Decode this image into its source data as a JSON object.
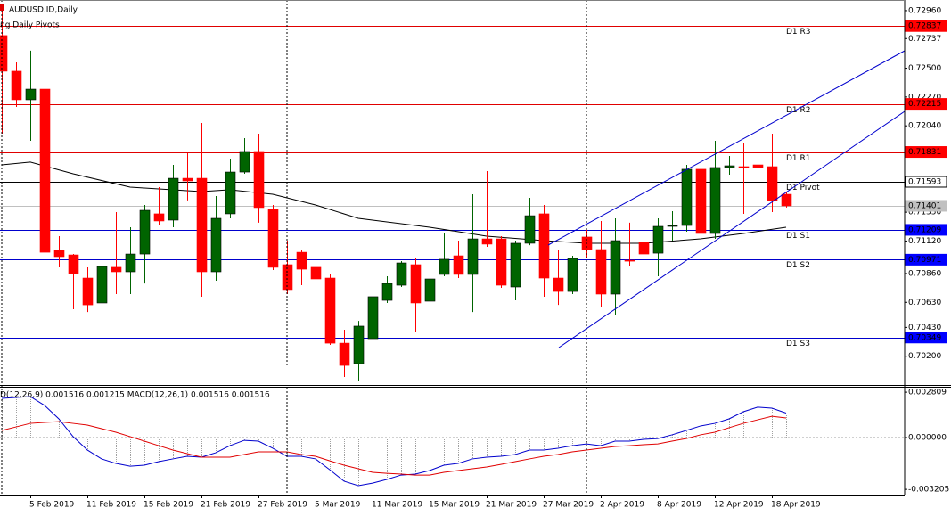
{
  "chart_data": {
    "type": "candlestick",
    "title": "AUDUSD.ID,Daily",
    "subtitle": "ng Daily Pivots",
    "categories": [
      null,
      null,
      "5 Feb 2019",
      null,
      null,
      null,
      "11 Feb 2019",
      null,
      null,
      null,
      "15 Feb 2019",
      null,
      null,
      null,
      "21 Feb 2019",
      null,
      null,
      null,
      "27 Feb 2019",
      null,
      null,
      null,
      "5 Mar 2019",
      null,
      null,
      null,
      "11 Mar 2019",
      null,
      null,
      null,
      "15 Mar 2019",
      null,
      null,
      null,
      "21 Mar 2019",
      null,
      null,
      null,
      "27 Mar 2019",
      null,
      null,
      null,
      "2 Apr 2019",
      null,
      null,
      null,
      "8 Apr 2019",
      null,
      null,
      null,
      "12 Apr 2019",
      null,
      null,
      null,
      "18 Apr 2019",
      null
    ],
    "open": [
      0.72761,
      0.72476,
      0.72248,
      0.72333,
      0.71045,
      0.71009,
      0.70824,
      0.70625,
      0.7091,
      0.70874,
      0.71016,
      0.71337,
      0.71287,
      0.71621,
      0.71621,
      0.70874,
      0.71337,
      0.71671,
      0.71835,
      0.71372,
      0.70931,
      0.7103,
      0.7091,
      0.70824,
      0.70304,
      0.7014,
      0.7034,
      0.70646,
      0.70767,
      0.70931,
      0.70639,
      0.70853,
      0.71002,
      0.70853,
      0.71137,
      0.71137,
      0.70753,
      0.71102,
      0.71337,
      0.70824,
      0.70717,
      0.71152,
      0.71052,
      0.70696,
      0.70966,
      0.71109,
      0.71023,
      0.71237,
      0.71244,
      0.71693,
      0.7118,
      0.71707,
      0.71714,
      0.71728,
      0.71714,
      0.71493
    ],
    "high": [
      0.72974,
      0.72547,
      0.7264,
      0.7244,
      0.71159,
      0.71016,
      0.7091,
      0.70981,
      0.71351,
      0.7123,
      0.71408,
      0.7155,
      0.71728,
      0.71821,
      0.72063,
      0.71479,
      0.71778,
      0.71942,
      0.71977,
      0.71408,
      0.71123,
      0.71052,
      0.70981,
      0.70853,
      0.70411,
      0.70482,
      0.70767,
      0.70838,
      0.70959,
      0.70981,
      0.7091,
      0.7118,
      0.71123,
      0.71493,
      0.71678,
      0.71159,
      0.71123,
      0.71465,
      0.71408,
      0.71052,
      0.71002,
      0.71209,
      0.7128,
      0.71301,
      0.71266,
      0.71301,
      0.71301,
      0.71358,
      0.71728,
      0.71728,
      0.7192,
      0.71799,
      0.71906,
      0.72049,
      0.71977,
      0.71515
    ],
    "low": [
      0.71977,
      0.72191,
      0.7192,
      0.71016,
      0.7091,
      0.70575,
      0.70553,
      0.70518,
      0.70696,
      0.70696,
      0.70781,
      0.71244,
      0.7123,
      0.71444,
      0.70675,
      0.70803,
      0.71301,
      0.71657,
      0.71266,
      0.70888,
      0.70696,
      0.70767,
      0.70625,
      0.7029,
      0.70034,
      0.70005,
      0.7034,
      0.70625,
      0.70753,
      0.70397,
      0.70603,
      0.70838,
      0.70824,
      0.70553,
      0.71073,
      0.70746,
      0.70646,
      0.71087,
      0.70675,
      0.7061,
      0.70696,
      0.70981,
      0.70589,
      0.70525,
      0.70924,
      0.70981,
      0.70838,
      0.71123,
      0.71194,
      0.71137,
      0.71137,
      0.7165,
      0.71337,
      0.71479,
      0.71351,
      0.71387
    ],
    "close": [
      0.72476,
      0.72248,
      0.72333,
      0.7103,
      0.70995,
      0.7086,
      0.7061,
      0.70917,
      0.70874,
      0.71016,
      0.71365,
      0.7128,
      0.71621,
      0.716,
      0.70874,
      0.71301,
      0.71671,
      0.71835,
      0.71387,
      0.7091,
      0.70732,
      0.70895,
      0.70817,
      0.70304,
      0.70126,
      0.7044,
      0.70675,
      0.70781,
      0.70945,
      0.70625,
      0.70817,
      0.70974,
      0.70853,
      0.71137,
      0.71095,
      0.70767,
      0.71102,
      0.71322,
      0.70824,
      0.70717,
      0.70981,
      0.71052,
      0.70696,
      0.71123,
      0.70959,
      0.71016,
      0.71237,
      0.71244,
      0.71693,
      0.7118,
      0.71707,
      0.71721,
      0.71714,
      0.71707,
      0.71444,
      0.71401
    ],
    "up_color": "#006400",
    "down_color": "#ff0000",
    "ylim": [
      0.6997,
      0.73045
    ],
    "yticks": [
      {
        "value": 0.7296,
        "label": "0.72960"
      },
      0.72737,
      {
        "value": 0.725,
        "label": "0.72500"
      },
      {
        "value": 0.7227,
        "label": "0.72270"
      },
      {
        "value": 0.7204,
        "label": "0.72040"
      },
      {
        "value": 0.7135,
        "label": "0.71350"
      },
      {
        "value": 0.7112,
        "label": "0.71120"
      },
      {
        "value": 0.7086,
        "label": "0.70860"
      },
      {
        "value": 0.7063,
        "label": "0.70630"
      },
      {
        "value": 0.7043,
        "label": "0.70430"
      },
      {
        "value": 0.702,
        "label": "0.70200"
      }
    ],
    "ma": {
      "color": "#000000",
      "x": [
        0,
        2,
        5,
        9,
        14,
        16,
        19,
        22,
        25,
        30,
        34,
        38,
        41,
        45,
        49,
        52,
        55
      ],
      "values": [
        0.71728,
        0.7175,
        0.71657,
        0.7155,
        0.71515,
        0.71529,
        0.71493,
        0.71408,
        0.71301,
        0.7123,
        0.71159,
        0.71123,
        0.71102,
        0.71102,
        0.71137,
        0.7118,
        0.7123
      ]
    },
    "levels": [
      {
        "name": "D1 R3",
        "value": 0.72837,
        "value_label": "0.72837",
        "color": "#e00000",
        "box": "#ff0000"
      },
      {
        "name": "D1 R2",
        "value": 0.72215,
        "value_label": "0.72215",
        "color": "#e00000",
        "box": "#ff0000"
      },
      {
        "name": "D1 R1",
        "value": 0.71831,
        "value_label": "0.71831",
        "color": "#e00000",
        "box": "#ff0000"
      },
      {
        "name": "D1 Pivot",
        "value": 0.71593,
        "value_label": "0.71593",
        "color": "#000000",
        "box": "#ffffff"
      },
      {
        "name": "D1 S1",
        "value": 0.71209,
        "value_label": "0.71209",
        "color": "#0000cd",
        "box": "#0000ff"
      },
      {
        "name": "D1 S2",
        "value": 0.70971,
        "value_label": "0.70971",
        "color": "#0000cd",
        "box": "#0000ff"
      },
      {
        "name": "D1 S3",
        "value": 0.70349,
        "value_label": "0.70349",
        "color": "#0000cd",
        "box": "#0000ff"
      }
    ],
    "last_price": {
      "value": 0.71401,
      "value_label": "0.71401",
      "color": "#c0c0c0"
    },
    "macd": {
      "legend": "D(12,26,9) 0.001516 0.001215 MACD(12,26,1) 0.001516 0.001516",
      "ylim": [
        -0.00353,
        0.00309
      ],
      "yticks": [
        0.002809,
        {
          "value": 0,
          "label": "0.000000"
        },
        -0.003205
      ],
      "macd": {
        "color": "#0000cd",
        "bar_color": "#a0a0a0",
        "values": [
          0.00243,
          0.00248,
          0.00254,
          0.00199,
          0.00116,
          6e-05,
          -0.00077,
          -0.00132,
          -0.0016,
          -0.00177,
          -0.00171,
          -0.00149,
          -0.00132,
          -0.00116,
          -0.00121,
          -0.00094,
          -0.0005,
          -0.00017,
          -0.00022,
          -0.00066,
          -0.00116,
          -0.00116,
          -0.00132,
          -0.00199,
          -0.0027,
          -0.00298,
          -0.00282,
          -0.00259,
          -0.00232,
          -0.00226,
          -0.00204,
          -0.00171,
          -0.0016,
          -0.00132,
          -0.00121,
          -0.00116,
          -0.00105,
          -0.00077,
          -0.00077,
          -0.00066,
          -0.0005,
          -0.00039,
          -0.0005,
          -0.00022,
          -0.00022,
          -0.00011,
          -6e-05,
          0.00017,
          0.00044,
          0.00072,
          0.00088,
          0.00116,
          0.0016,
          0.00188,
          0.00182,
          0.001516
        ]
      },
      "signal": {
        "color": "#e00000",
        "values": [
          0.00044,
          0.00066,
          0.00088,
          0.00094,
          0.00099,
          0.00088,
          0.00077,
          0.00055,
          0.00033,
          6e-05,
          -0.00022,
          -0.0005,
          -0.00077,
          -0.00099,
          -0.00121,
          -0.00121,
          -0.00121,
          -0.00105,
          -0.00088,
          -0.00088,
          -0.00088,
          -0.00105,
          -0.00116,
          -0.00144,
          -0.00171,
          -0.00193,
          -0.00215,
          -0.00221,
          -0.00226,
          -0.00232,
          -0.00232,
          -0.00215,
          -0.00204,
          -0.00193,
          -0.00182,
          -0.00166,
          -0.00149,
          -0.00132,
          -0.00116,
          -0.00105,
          -0.00088,
          -0.00077,
          -0.00066,
          -0.00055,
          -0.0005,
          -0.00044,
          -0.00039,
          -0.00022,
          -6e-05,
          0.00017,
          0.00033,
          0.00061,
          0.00088,
          0.0011,
          0.00132,
          0.001215
        ]
      }
    }
  }
}
